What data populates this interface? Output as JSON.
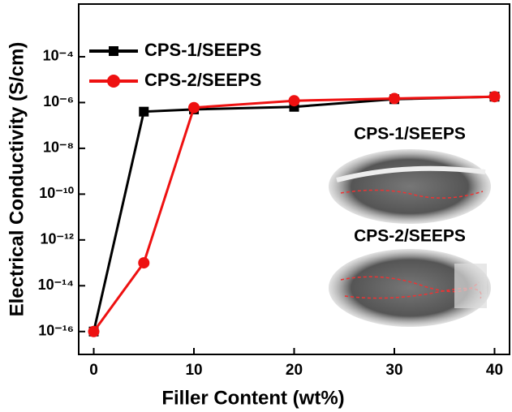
{
  "chart_data": {
    "type": "line",
    "x_label": "Filler Content (wt%)",
    "y_label": "Electrical Conductivity (S/cm)",
    "x": [
      0,
      5,
      10,
      20,
      30,
      40
    ],
    "series": [
      {
        "name": "CPS-1/SEEPS",
        "color": "#000000",
        "marker": "square",
        "values": [
          1e-16,
          4e-07,
          5e-07,
          6.5e-07,
          1.4e-06,
          1.8e-06
        ]
      },
      {
        "name": "CPS-2/SEEPS",
        "color": "#ee1111",
        "marker": "circle",
        "values": [
          1e-16,
          1e-13,
          6e-07,
          1.2e-06,
          1.5e-06,
          1.8e-06
        ]
      }
    ],
    "xlim": [
      -1.5,
      41.5
    ],
    "xticks": [
      0,
      10,
      20,
      30,
      40
    ],
    "ylim": [
      1e-17,
      0.02
    ],
    "log_y": true,
    "yticks": [
      {
        "value": 1e-16,
        "label": "10⁻¹⁶"
      },
      {
        "value": 1e-14,
        "label": "10⁻¹⁴"
      },
      {
        "value": 1e-12,
        "label": "10⁻¹²"
      },
      {
        "value": 1e-10,
        "label": "10⁻¹⁰"
      },
      {
        "value": 1e-08,
        "label": "10⁻⁸"
      },
      {
        "value": 1e-06,
        "label": "10⁻⁶"
      },
      {
        "value": 0.0001,
        "label": "10⁻⁴"
      }
    ],
    "legend": "upper-left",
    "annotations": [
      "CPS-1/SEEPS",
      "CPS-2/SEEPS"
    ]
  }
}
